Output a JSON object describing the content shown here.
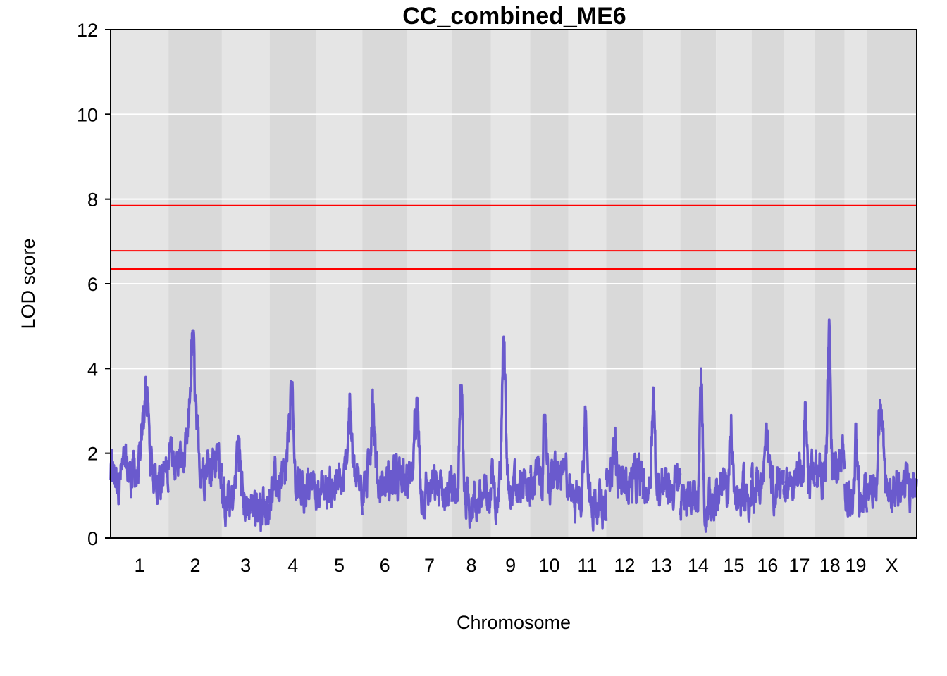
{
  "chart_data": {
    "type": "line",
    "title": "CC_combined_ME6",
    "xlabel": "Chromosome",
    "ylabel": "LOD score",
    "ylim": [
      0,
      12
    ],
    "y_ticks": [
      "0",
      "2",
      "4",
      "6",
      "8",
      "10",
      "12"
    ],
    "grid": true,
    "line_color": "#6a5acd",
    "threshold_color": "#ff0000",
    "thresholds": [
      7.85,
      6.78,
      6.35
    ],
    "chromosomes": [
      {
        "label": "1",
        "start": 0,
        "end": 1.43,
        "peak": 3.8,
        "base": 1.5
      },
      {
        "label": "2",
        "start": 1.43,
        "end": 2.75,
        "peak": 4.9,
        "base": 1.8
      },
      {
        "label": "3",
        "start": 2.75,
        "end": 3.93,
        "peak": 2.4,
        "base": 0.8
      },
      {
        "label": "4",
        "start": 3.93,
        "end": 5.08,
        "peak": 3.7,
        "base": 1.2
      },
      {
        "label": "5",
        "start": 5.08,
        "end": 6.22,
        "peak": 3.4,
        "base": 1.2
      },
      {
        "label": "6",
        "start": 6.22,
        "end": 7.33,
        "peak": 3.5,
        "base": 1.3
      },
      {
        "label": "7",
        "start": 7.33,
        "end": 8.43,
        "peak": 3.3,
        "base": 1.1
      },
      {
        "label": "8",
        "start": 8.43,
        "end": 9.4,
        "peak": 3.6,
        "base": 0.9
      },
      {
        "label": "9",
        "start": 9.4,
        "end": 10.37,
        "peak": 4.75,
        "base": 1.1
      },
      {
        "label": "10",
        "start": 10.37,
        "end": 11.31,
        "peak": 2.9,
        "base": 1.4
      },
      {
        "label": "11",
        "start": 11.31,
        "end": 12.25,
        "peak": 3.1,
        "base": 0.9
      },
      {
        "label": "12",
        "start": 12.25,
        "end": 13.15,
        "peak": 2.6,
        "base": 1.3
      },
      {
        "label": "13",
        "start": 13.15,
        "end": 14.08,
        "peak": 3.55,
        "base": 1.2
      },
      {
        "label": "14",
        "start": 14.08,
        "end": 14.96,
        "peak": 4.0,
        "base": 0.8
      },
      {
        "label": "15",
        "start": 14.96,
        "end": 15.84,
        "peak": 2.9,
        "base": 1.0
      },
      {
        "label": "16",
        "start": 15.84,
        "end": 16.63,
        "peak": 2.7,
        "base": 1.3
      },
      {
        "label": "17",
        "start": 16.63,
        "end": 17.41,
        "peak": 3.2,
        "base": 1.4
      },
      {
        "label": "18",
        "start": 17.41,
        "end": 18.14,
        "peak": 5.15,
        "base": 1.6
      },
      {
        "label": "19",
        "start": 18.14,
        "end": 18.69,
        "peak": 2.7,
        "base": 1.0
      },
      {
        "label": "X",
        "start": 18.69,
        "end": 19.92,
        "peak": 3.25,
        "base": 1.2
      }
    ]
  }
}
